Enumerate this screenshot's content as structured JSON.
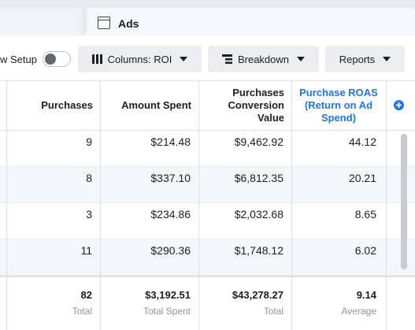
{
  "tabs": {
    "active": "Ads"
  },
  "toolbar": {
    "setup_label": "w Setup",
    "columns_button": "Columns: ROI",
    "breakdown_button": "Breakdown",
    "reports_button": "Reports"
  },
  "table": {
    "headers": [
      "Purchases",
      "Amount Spent",
      "Purchases Conversion Value",
      "Purchase ROAS (Return on Ad Spend)"
    ],
    "rows": [
      [
        "9",
        "$214.48",
        "$9,462.92",
        "44.12"
      ],
      [
        "8",
        "$337.10",
        "$6,812.35",
        "20.21"
      ],
      [
        "3",
        "$234.86",
        "$2,032.68",
        "8.65"
      ],
      [
        "11",
        "$290.36",
        "$1,748.12",
        "6.02"
      ]
    ],
    "totals": [
      {
        "value": "82",
        "label": "Total"
      },
      {
        "value": "$3,192.51",
        "label": "Total Spent"
      },
      {
        "value": "$43,278.27",
        "label": "Total"
      },
      {
        "value": "9.14",
        "label": "Average"
      }
    ]
  }
}
